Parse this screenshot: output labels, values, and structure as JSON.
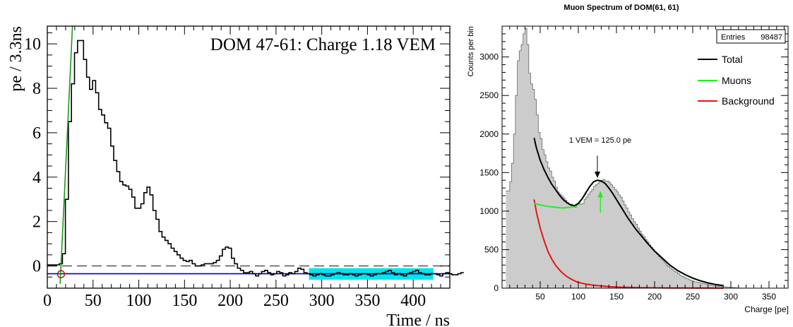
{
  "chart_data": [
    {
      "type": "line",
      "id": "left",
      "annotation": "DOM 47-61: Charge 1.18 VEM",
      "xlabel": "Time / ns",
      "ylabel": "pe / 3.3ns",
      "xlim": [
        0,
        440
      ],
      "ylim": [
        -1.0,
        10.8
      ],
      "xticks": [
        0,
        50,
        100,
        150,
        200,
        250,
        300,
        350,
        400
      ],
      "yticks": [
        0,
        2,
        4,
        6,
        8,
        10
      ],
      "grid": false,
      "colors": {
        "waveform": "#000000",
        "rise_fit": "#1a9a1a",
        "baseline_fit": "#0000cc",
        "zero_dash": "#555555",
        "baseline_window": "#00e5ee",
        "start_marker": "#cc0000"
      },
      "baseline": -0.35,
      "baseline_window": [
        286,
        422
      ],
      "start_marker": [
        15,
        -0.37
      ],
      "rise_fit": {
        "x": [
          14,
          27.5
        ],
        "y": [
          -0.8,
          10.8
        ]
      },
      "waveform": {
        "bin_width": 3.3,
        "x_start": 0,
        "values": [
          0.05,
          0.05,
          0.05,
          0.05,
          0.1,
          0.55,
          3.0,
          6.5,
          8.2,
          9.6,
          10.15,
          10.15,
          9.3,
          8.5,
          7.95,
          8.35,
          7.8,
          7.05,
          6.8,
          6.45,
          6.2,
          5.4,
          4.75,
          4.25,
          3.8,
          3.65,
          3.6,
          3.45,
          3.1,
          2.6,
          2.6,
          2.8,
          3.3,
          3.55,
          3.2,
          2.5,
          2.1,
          1.55,
          1.3,
          1.15,
          1.0,
          0.8,
          0.65,
          0.5,
          0.35,
          0.25,
          0.2,
          0.25,
          0.1,
          0.0,
          0.0,
          0.05,
          0.1,
          0.1,
          0.1,
          0.15,
          0.25,
          0.45,
          0.75,
          0.85,
          0.8,
          0.35,
          0.1,
          -0.1,
          -0.2,
          -0.3,
          -0.3,
          -0.25,
          -0.35,
          -0.45,
          -0.35,
          -0.25,
          -0.2,
          -0.3,
          -0.4,
          -0.35,
          -0.25,
          -0.3,
          -0.45,
          -0.4,
          -0.3,
          -0.35,
          -0.25,
          -0.1,
          -0.15,
          -0.3,
          -0.35,
          -0.4,
          -0.45,
          -0.4,
          -0.35,
          -0.4,
          -0.45,
          -0.45,
          -0.4,
          -0.35,
          -0.3,
          -0.35,
          -0.4,
          -0.4,
          -0.35,
          -0.4,
          -0.45,
          -0.4,
          -0.35,
          -0.35,
          -0.4,
          -0.45,
          -0.4,
          -0.35,
          -0.35,
          -0.3,
          -0.25,
          -0.2,
          -0.3,
          -0.4,
          -0.35,
          -0.4,
          -0.45,
          -0.35,
          -0.3,
          -0.25,
          -0.2,
          -0.3,
          -0.35,
          -0.4,
          -0.4,
          -0.35,
          -0.35,
          -0.4,
          -0.45,
          -0.35,
          -0.3,
          -0.35,
          -0.4,
          -0.4,
          -0.35,
          -0.3
        ]
      }
    },
    {
      "type": "area",
      "id": "right",
      "title": "Muon Spectrum of DOM(61, 61)",
      "xlabel": "Charge [pe]",
      "ylabel": "Counts per bin",
      "xlim": [
        0,
        375
      ],
      "ylim": [
        0,
        3400
      ],
      "xticks": [
        50,
        100,
        150,
        200,
        250,
        300,
        350
      ],
      "yticks": [
        0,
        500,
        1000,
        1500,
        2000,
        2500,
        3000
      ],
      "grid": false,
      "stats_label": "Entries",
      "stats_value": "98487",
      "legend_position": "top-right",
      "legend": [
        "Total",
        "Muons",
        "Background"
      ],
      "colors": {
        "histogram_fill": "#cccccc",
        "histogram_line": "#666666",
        "Total": "#000000",
        "Muons": "#22ee22",
        "Background": "#ee1111",
        "vem_arrow": "#000000",
        "peak_arrow": "#22ee22"
      },
      "vem_label": "1 VEM = 125.0 pe",
      "vem_position": 125,
      "vem_arrow_y": [
        1720,
        1430
      ],
      "peak_arrow": {
        "x": 129,
        "y": [
          980,
          1260
        ]
      },
      "histogram": {
        "bin_width": 2.5,
        "x_start": 5,
        "values": [
          1260,
          1260,
          1380,
          1620,
          2000,
          2500,
          2950,
          3080,
          3160,
          3300,
          3370,
          3160,
          2790,
          2650,
          2580,
          2450,
          2250,
          2020,
          1940,
          1800,
          1730,
          1640,
          1560,
          1520,
          1440,
          1390,
          1310,
          1250,
          1220,
          1200,
          1170,
          1140,
          1110,
          1090,
          1090,
          1070,
          1050,
          1080,
          1100,
          1090,
          1100,
          1150,
          1180,
          1220,
          1250,
          1280,
          1320,
          1340,
          1360,
          1380,
          1400,
          1410,
          1390,
          1390,
          1370,
          1340,
          1310,
          1280,
          1250,
          1210,
          1180,
          1130,
          1080,
          1040,
          990,
          950,
          900,
          860,
          830,
          780,
          740,
          700,
          670,
          630,
          600,
          560,
          530,
          500,
          470,
          440,
          410,
          380,
          360,
          330,
          300,
          280,
          260,
          240,
          220,
          210,
          190,
          170,
          155,
          145,
          130,
          120,
          108,
          100,
          90,
          82,
          78,
          72,
          65,
          60,
          55,
          50,
          45,
          40,
          36,
          33,
          28,
          25,
          22,
          20,
          18,
          16,
          14,
          12,
          10,
          8,
          6,
          4,
          2,
          2,
          1,
          1
        ]
      },
      "total_fit": {
        "x": [
          42,
          45,
          50,
          55,
          60,
          65,
          70,
          75,
          80,
          85,
          90,
          95,
          100,
          105,
          110,
          115,
          120,
          125,
          130,
          135,
          140,
          145,
          150,
          155,
          160,
          165,
          170,
          175,
          180,
          190,
          200,
          210,
          220,
          230,
          240,
          250,
          260,
          270,
          280,
          290
        ],
        "y": [
          1950,
          1820,
          1660,
          1540,
          1440,
          1350,
          1280,
          1210,
          1150,
          1110,
          1080,
          1070,
          1100,
          1160,
          1240,
          1320,
          1380,
          1400,
          1390,
          1360,
          1300,
          1230,
          1150,
          1070,
          990,
          910,
          840,
          770,
          710,
          590,
          480,
          390,
          300,
          230,
          175,
          130,
          95,
          68,
          48,
          33
        ]
      },
      "muon_fit": {
        "x": [
          42,
          50,
          60,
          70,
          80,
          90,
          95,
          100,
          105,
          110,
          115,
          120,
          125,
          130,
          135,
          140,
          145,
          150,
          155,
          160,
          165,
          170,
          175,
          180,
          190,
          200,
          210,
          220,
          230,
          240,
          250,
          260,
          270,
          280,
          290
        ],
        "y": [
          1100,
          1080,
          1060,
          1050,
          1040,
          1050,
          1060,
          1090,
          1160,
          1240,
          1320,
          1380,
          1400,
          1390,
          1360,
          1300,
          1230,
          1150,
          1070,
          990,
          910,
          840,
          770,
          710,
          590,
          480,
          390,
          300,
          230,
          175,
          130,
          95,
          68,
          48,
          33
        ]
      },
      "background_fit": {
        "x": [
          42,
          45,
          50,
          55,
          60,
          65,
          70,
          75,
          80,
          85,
          90,
          95,
          100,
          110,
          120,
          130,
          140,
          150,
          160,
          180,
          200,
          220,
          240,
          260,
          280,
          290
        ],
        "y": [
          1150,
          990,
          780,
          620,
          480,
          380,
          300,
          240,
          190,
          150,
          120,
          95,
          75,
          52,
          38,
          28,
          20,
          15,
          11,
          7,
          5,
          3,
          2,
          1,
          1,
          0
        ]
      }
    }
  ]
}
